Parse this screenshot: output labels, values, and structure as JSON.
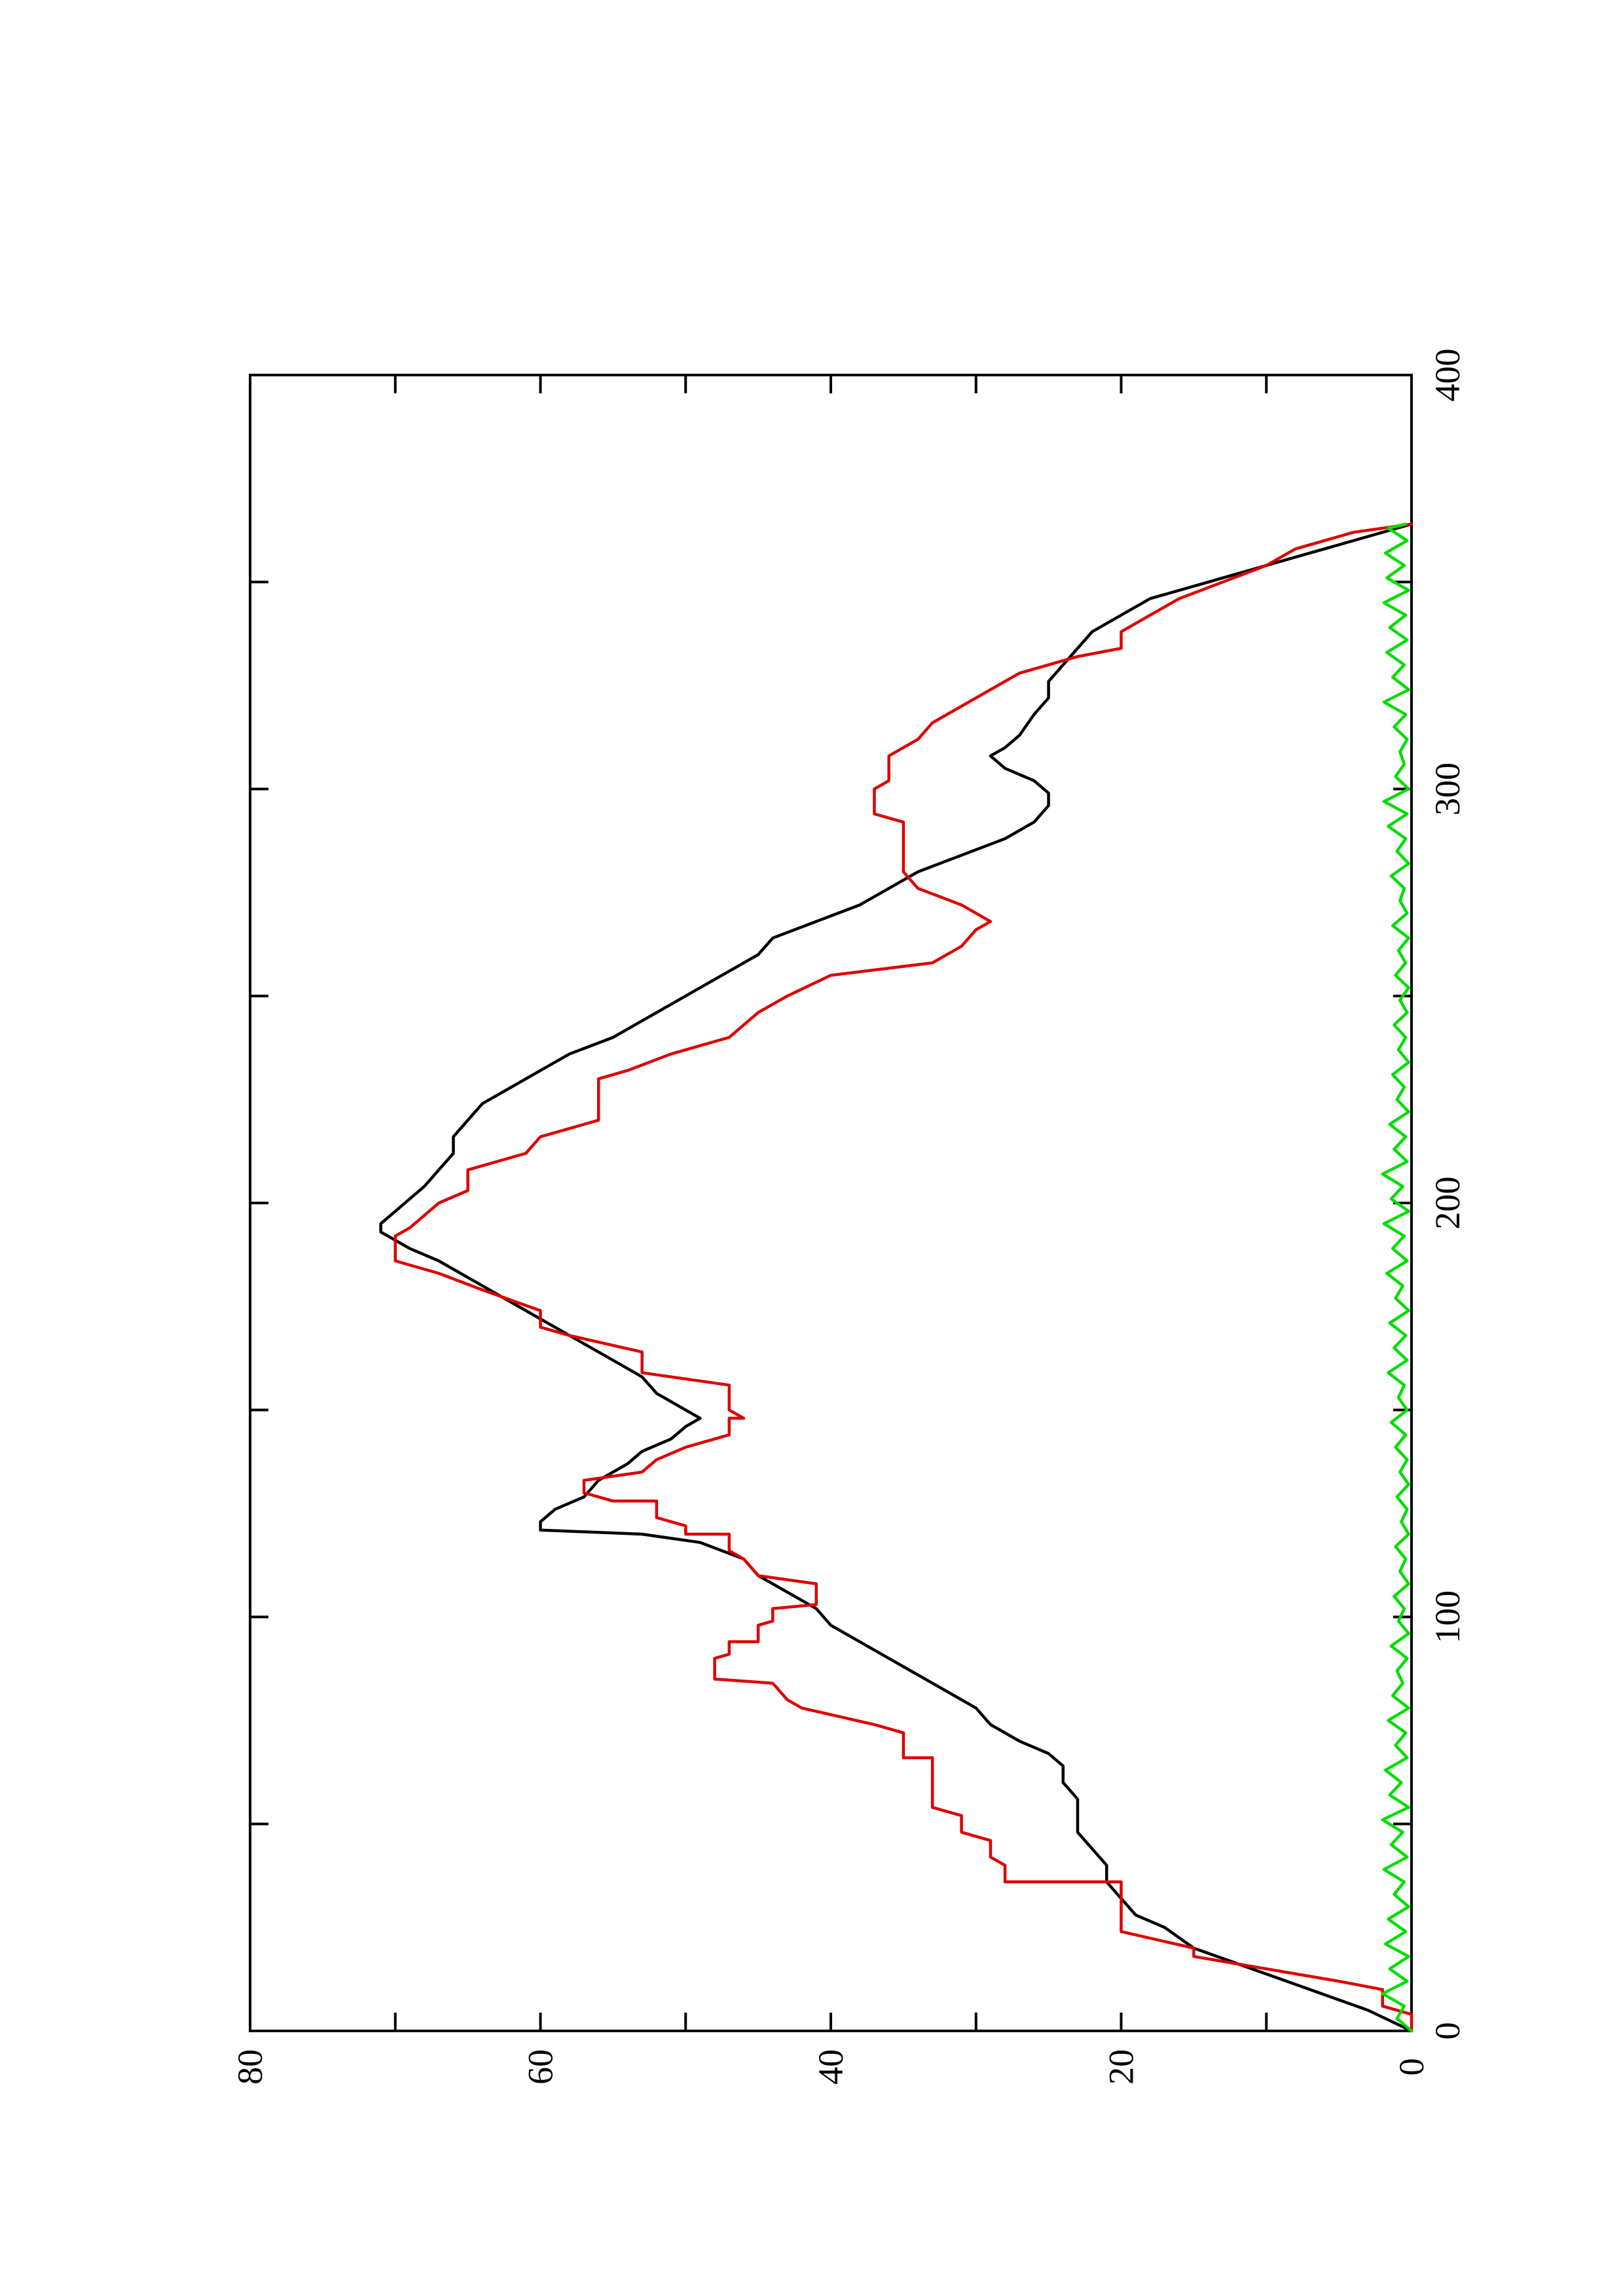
{
  "chart_data": {
    "type": "line",
    "orientation": "rotated 90 degrees counter-clockwise",
    "title": "",
    "xlabel": "",
    "ylabel": "",
    "xlim": [
      0,
      400
    ],
    "ylim": [
      0,
      80
    ],
    "xticks": [
      0,
      100,
      200,
      300,
      400
    ],
    "yticks": [
      0,
      20,
      40,
      60,
      80
    ],
    "xtick_labels": [
      "0",
      "100",
      "200",
      "300",
      "400"
    ],
    "ytick_labels": [
      "0",
      "20",
      "40",
      "60",
      "80"
    ],
    "x_minor_ticks": [
      50,
      150,
      250,
      350
    ],
    "y_minor_ticks": [
      10,
      30,
      50,
      70
    ],
    "grid": false,
    "legend": "none",
    "series": [
      {
        "color": "#000000",
        "style": "smooth",
        "points": [
          [
            0,
            0
          ],
          [
            5,
            3
          ],
          [
            10,
            7
          ],
          [
            15,
            11
          ],
          [
            20,
            15
          ],
          [
            25,
            17
          ],
          [
            28,
            19
          ],
          [
            32,
            20
          ],
          [
            36,
            21
          ],
          [
            40,
            21
          ],
          [
            44,
            22
          ],
          [
            48,
            23
          ],
          [
            52,
            23
          ],
          [
            56,
            23
          ],
          [
            60,
            24
          ],
          [
            64,
            24
          ],
          [
            67,
            25
          ],
          [
            70,
            27
          ],
          [
            74,
            29
          ],
          [
            78,
            30
          ],
          [
            82,
            32
          ],
          [
            86,
            34
          ],
          [
            90,
            36
          ],
          [
            94,
            38
          ],
          [
            98,
            40
          ],
          [
            102,
            41
          ],
          [
            106,
            43
          ],
          [
            110,
            45
          ],
          [
            114,
            46
          ],
          [
            118,
            49
          ],
          [
            120,
            53
          ],
          [
            121,
            60
          ],
          [
            123,
            60
          ],
          [
            126,
            59
          ],
          [
            129,
            57
          ],
          [
            133,
            56
          ],
          [
            137,
            54
          ],
          [
            140,
            53
          ],
          [
            143,
            51
          ],
          [
            146,
            50
          ],
          [
            148,
            49
          ],
          [
            150,
            50
          ],
          [
            154,
            52
          ],
          [
            158,
            53
          ],
          [
            162,
            55
          ],
          [
            166,
            57
          ],
          [
            170,
            59
          ],
          [
            174,
            61
          ],
          [
            178,
            63
          ],
          [
            182,
            65
          ],
          [
            186,
            67
          ],
          [
            189,
            69
          ],
          [
            191,
            70
          ],
          [
            193,
            71
          ],
          [
            195,
            71
          ],
          [
            198,
            70
          ],
          [
            201,
            69
          ],
          [
            204,
            68
          ],
          [
            208,
            67
          ],
          [
            212,
            66
          ],
          [
            216,
            66
          ],
          [
            220,
            65
          ],
          [
            224,
            64
          ],
          [
            228,
            62
          ],
          [
            232,
            60
          ],
          [
            236,
            58
          ],
          [
            240,
            55
          ],
          [
            244,
            53
          ],
          [
            248,
            51
          ],
          [
            252,
            49
          ],
          [
            256,
            47
          ],
          [
            260,
            45
          ],
          [
            264,
            44
          ],
          [
            268,
            41
          ],
          [
            272,
            38
          ],
          [
            276,
            36
          ],
          [
            280,
            34
          ],
          [
            284,
            31
          ],
          [
            288,
            28
          ],
          [
            292,
            26
          ],
          [
            296,
            25
          ],
          [
            299,
            25
          ],
          [
            302,
            26
          ],
          [
            305,
            28
          ],
          [
            308,
            29
          ],
          [
            310,
            28
          ],
          [
            313,
            27
          ],
          [
            318,
            26
          ],
          [
            322,
            25
          ],
          [
            326,
            25
          ],
          [
            330,
            24
          ],
          [
            334,
            23
          ],
          [
            338,
            22
          ],
          [
            342,
            20
          ],
          [
            346,
            18
          ],
          [
            350,
            14
          ],
          [
            355,
            9
          ],
          [
            360,
            4
          ],
          [
            364,
            0
          ]
        ]
      },
      {
        "color": "#dd0000",
        "style": "step",
        "points": [
          [
            0,
            0
          ],
          [
            4,
            0
          ],
          [
            6,
            2
          ],
          [
            10,
            2
          ],
          [
            12,
            5
          ],
          [
            18,
            15
          ],
          [
            20,
            15
          ],
          [
            24,
            20
          ],
          [
            36,
            20
          ],
          [
            36,
            28
          ],
          [
            40,
            28
          ],
          [
            42,
            29
          ],
          [
            46,
            29
          ],
          [
            48,
            31
          ],
          [
            52,
            31
          ],
          [
            54,
            33
          ],
          [
            66,
            33
          ],
          [
            66,
            35
          ],
          [
            72,
            35
          ],
          [
            74,
            37
          ],
          [
            78,
            42
          ],
          [
            80,
            43
          ],
          [
            84,
            44
          ],
          [
            85,
            48
          ],
          [
            90,
            48
          ],
          [
            91,
            47
          ],
          [
            94,
            47
          ],
          [
            94,
            45
          ],
          [
            98,
            45
          ],
          [
            99,
            44
          ],
          [
            102,
            44
          ],
          [
            103,
            41
          ],
          [
            108,
            41
          ],
          [
            110,
            45
          ],
          [
            114,
            46
          ],
          [
            116,
            47
          ],
          [
            120,
            47
          ],
          [
            120,
            50
          ],
          [
            122,
            50
          ],
          [
            124,
            52
          ],
          [
            128,
            52
          ],
          [
            128,
            55
          ],
          [
            130,
            57
          ],
          [
            133,
            57
          ],
          [
            135,
            53
          ],
          [
            138,
            52
          ],
          [
            141,
            50
          ],
          [
            144,
            47
          ],
          [
            148,
            47
          ],
          [
            148,
            46
          ],
          [
            150,
            47
          ],
          [
            156,
            47
          ],
          [
            159,
            53
          ],
          [
            164,
            53
          ],
          [
            168,
            58
          ],
          [
            170,
            60
          ],
          [
            174,
            60
          ],
          [
            179,
            64
          ],
          [
            183,
            67
          ],
          [
            186,
            70
          ],
          [
            192,
            70
          ],
          [
            194,
            69
          ],
          [
            200,
            67
          ],
          [
            203,
            65
          ],
          [
            208,
            65
          ],
          [
            212,
            61
          ],
          [
            216,
            60
          ],
          [
            220,
            56
          ],
          [
            230,
            56
          ],
          [
            232,
            54
          ],
          [
            236,
            51
          ],
          [
            240,
            47
          ],
          [
            246,
            45
          ],
          [
            250,
            43
          ],
          [
            255,
            40
          ],
          [
            258,
            33
          ],
          [
            262,
            31
          ],
          [
            266,
            30
          ],
          [
            268,
            29
          ],
          [
            272,
            31
          ],
          [
            276,
            34
          ],
          [
            280,
            35
          ],
          [
            292,
            35
          ],
          [
            294,
            37
          ],
          [
            300,
            37
          ],
          [
            302,
            36
          ],
          [
            308,
            36
          ],
          [
            312,
            34
          ],
          [
            316,
            33
          ],
          [
            320,
            31
          ],
          [
            324,
            29
          ],
          [
            328,
            27
          ],
          [
            332,
            23
          ],
          [
            334,
            20
          ],
          [
            338,
            20
          ],
          [
            342,
            18
          ],
          [
            346,
            16
          ],
          [
            350,
            13
          ],
          [
            354,
            10
          ],
          [
            358,
            8
          ],
          [
            362,
            4
          ],
          [
            364,
            0
          ]
        ]
      },
      {
        "color": "#00dd00",
        "style": "noisy",
        "baseline_range": [
          0,
          2
        ],
        "x_range": [
          0,
          364
        ],
        "points": [
          [
            0,
            0
          ],
          [
            3,
            1
          ],
          [
            6,
            0.5
          ],
          [
            9,
            2
          ],
          [
            12,
            0.3
          ],
          [
            15,
            1.5
          ],
          [
            18,
            0.2
          ],
          [
            21,
            1.8
          ],
          [
            24,
            0.4
          ],
          [
            27,
            1.6
          ],
          [
            30,
            0.2
          ],
          [
            33,
            1.2
          ],
          [
            36,
            0.5
          ],
          [
            39,
            1.9
          ],
          [
            42,
            0.3
          ],
          [
            45,
            1.4
          ],
          [
            48,
            0.6
          ],
          [
            51,
            2
          ],
          [
            54,
            0.2
          ],
          [
            57,
            1.5
          ],
          [
            60,
            0.7
          ],
          [
            63,
            1.8
          ],
          [
            66,
            0.3
          ],
          [
            69,
            1.1
          ],
          [
            72,
            0.4
          ],
          [
            75,
            1.6
          ],
          [
            78,
            0.2
          ],
          [
            81,
            1.3
          ],
          [
            84,
            0.6
          ],
          [
            87,
            1
          ],
          [
            90,
            0.3
          ],
          [
            93,
            1.4
          ],
          [
            96,
            0.2
          ],
          [
            99,
            0.9
          ],
          [
            102,
            0.5
          ],
          [
            105,
            1.2
          ],
          [
            108,
            0.2
          ],
          [
            111,
            0.8
          ],
          [
            114,
            0.4
          ],
          [
            117,
            1.1
          ],
          [
            120,
            0.2
          ],
          [
            123,
            0.7
          ],
          [
            126,
            0.3
          ],
          [
            129,
            1
          ],
          [
            132,
            0.2
          ],
          [
            135,
            0.8
          ],
          [
            138,
            0.3
          ],
          [
            141,
            1.1
          ],
          [
            144,
            0.4
          ],
          [
            147,
            1.4
          ],
          [
            150,
            0.3
          ],
          [
            153,
            0.9
          ],
          [
            156,
            0.5
          ],
          [
            159,
            1.6
          ],
          [
            162,
            0.3
          ],
          [
            165,
            1.2
          ],
          [
            168,
            0.4
          ],
          [
            171,
            1.5
          ],
          [
            174,
            0.2
          ],
          [
            177,
            1.1
          ],
          [
            180,
            0.6
          ],
          [
            183,
            1.7
          ],
          [
            186,
            0.3
          ],
          [
            189,
            1.3
          ],
          [
            192,
            0.5
          ],
          [
            195,
            1.9
          ],
          [
            198,
            0.2
          ],
          [
            201,
            1.4
          ],
          [
            204,
            0.6
          ],
          [
            207,
            2
          ],
          [
            210,
            0.3
          ],
          [
            213,
            1.2
          ],
          [
            216,
            0.4
          ],
          [
            219,
            1.5
          ],
          [
            222,
            0.2
          ],
          [
            225,
            1
          ],
          [
            228,
            0.5
          ],
          [
            231,
            1.3
          ],
          [
            234,
            0.2
          ],
          [
            237,
            0.9
          ],
          [
            240,
            0.4
          ],
          [
            243,
            1.2
          ],
          [
            246,
            0.3
          ],
          [
            249,
            0.8
          ],
          [
            252,
            0.2
          ],
          [
            255,
            1.1
          ],
          [
            258,
            0.4
          ],
          [
            261,
            0.9
          ],
          [
            264,
            0.2
          ],
          [
            267,
            1.3
          ],
          [
            270,
            0.3
          ],
          [
            273,
            0.8
          ],
          [
            276,
            0.5
          ],
          [
            279,
            1.4
          ],
          [
            282,
            0.2
          ],
          [
            285,
            1
          ],
          [
            288,
            0.4
          ],
          [
            291,
            1.6
          ],
          [
            294,
            0.3
          ],
          [
            297,
            1.9
          ],
          [
            300,
            0.2
          ],
          [
            303,
            1.1
          ],
          [
            306,
            0.5
          ],
          [
            309,
            0.8
          ],
          [
            312,
            0.3
          ],
          [
            315,
            1.2
          ],
          [
            318,
            0.4
          ],
          [
            321,
            1.9
          ],
          [
            324,
            0.2
          ],
          [
            327,
            1.3
          ],
          [
            330,
            0.5
          ],
          [
            333,
            1.7
          ],
          [
            336,
            0.3
          ],
          [
            339,
            1.5
          ],
          [
            342,
            0.4
          ],
          [
            345,
            1.9
          ],
          [
            348,
            0.2
          ],
          [
            351,
            1.7
          ],
          [
            354,
            0.5
          ],
          [
            357,
            1.8
          ],
          [
            360,
            0.3
          ],
          [
            363,
            1.6
          ],
          [
            364,
            0.4
          ]
        ]
      }
    ]
  }
}
